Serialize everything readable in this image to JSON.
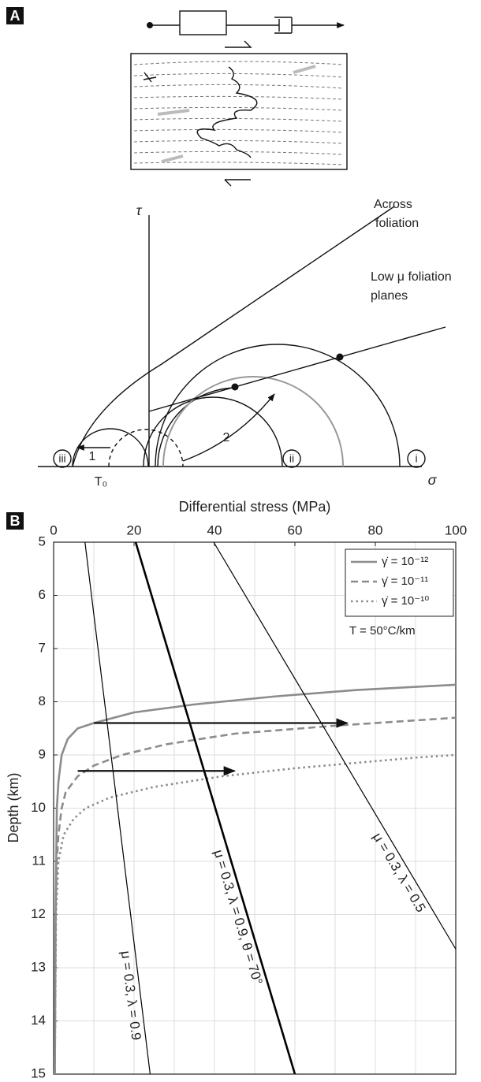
{
  "panel_a": {
    "label": "A",
    "tau_axis": "τ",
    "sigma_axis": "σ",
    "tensile_strength": "T₀",
    "across_foliation": [
      "Across",
      "foliation"
    ],
    "low_mu_foliation": [
      "Low μ foliation",
      "planes"
    ],
    "circle_labels": [
      "iii",
      "ii",
      "i"
    ],
    "path_labels": [
      "1",
      "2"
    ]
  },
  "chart_data": {
    "type": "line",
    "panel_label": "B",
    "x_label": "Differential stress (MPa)",
    "y_label": "Depth (km)",
    "xlim": [
      0,
      100
    ],
    "ylim": [
      5,
      15
    ],
    "y_inverted": true,
    "xticks": [
      0,
      20,
      40,
      60,
      80,
      100
    ],
    "xgrid": [
      0,
      10,
      20,
      30,
      40,
      50,
      60,
      70,
      80,
      90,
      100
    ],
    "yticks": [
      5,
      6,
      7,
      8,
      9,
      10,
      11,
      12,
      13,
      14,
      15
    ],
    "grid": true,
    "legend": "upper right",
    "legend_note": "T = 50°C/km",
    "series": [
      {
        "name": "γ̇ = 10⁻¹²",
        "color": "#8c8c8c",
        "style": "solid",
        "x": [
          0.3,
          0.5,
          0.8,
          1.2,
          2,
          3.5,
          6,
          10,
          20,
          35,
          55,
          75,
          100
        ],
        "y": [
          15,
          12,
          10,
          9.5,
          9,
          8.7,
          8.5,
          8.4,
          8.2,
          8.05,
          7.9,
          7.78,
          7.68
        ]
      },
      {
        "name": "γ̇ = 10⁻¹¹",
        "color": "#8c8c8c",
        "style": "dashed",
        "x": [
          0.3,
          0.5,
          0.8,
          1.2,
          2,
          3,
          6,
          10,
          17,
          28,
          45,
          70,
          90,
          100
        ],
        "y": [
          15,
          12,
          11,
          10.5,
          10,
          9.7,
          9.4,
          9.2,
          9,
          8.8,
          8.6,
          8.45,
          8.35,
          8.3
        ]
      },
      {
        "name": "γ̇ = 10⁻¹⁰",
        "color": "#8c8c8c",
        "style": "dotted",
        "x": [
          0.3,
          0.6,
          1.2,
          2.5,
          5,
          8,
          14,
          25,
          42,
          60,
          75,
          90,
          100
        ],
        "y": [
          15,
          12,
          11,
          10.5,
          10.2,
          10,
          9.8,
          9.6,
          9.4,
          9.25,
          9.15,
          9.05,
          9.0
        ]
      }
    ],
    "strength_lines": [
      {
        "label": "μ = 0.3, λ = 0.9",
        "color": "#000000",
        "x": [
          7.8,
          24
        ],
        "y": [
          5,
          15
        ]
      },
      {
        "label": "μ = 0.3, λ = 0.9, θ = 70°",
        "color": "#000000",
        "x": [
          20.4,
          60
        ],
        "y": [
          5,
          15
        ]
      },
      {
        "label": "μ = 0.3, λ = 0.5",
        "color": "#000000",
        "x": [
          39.8,
          100
        ],
        "y": [
          5,
          12.65
        ]
      }
    ],
    "arrows": [
      {
        "x": [
          10,
          73
        ],
        "y": 8.4
      },
      {
        "x": [
          6,
          45
        ],
        "y": 9.3
      }
    ]
  }
}
